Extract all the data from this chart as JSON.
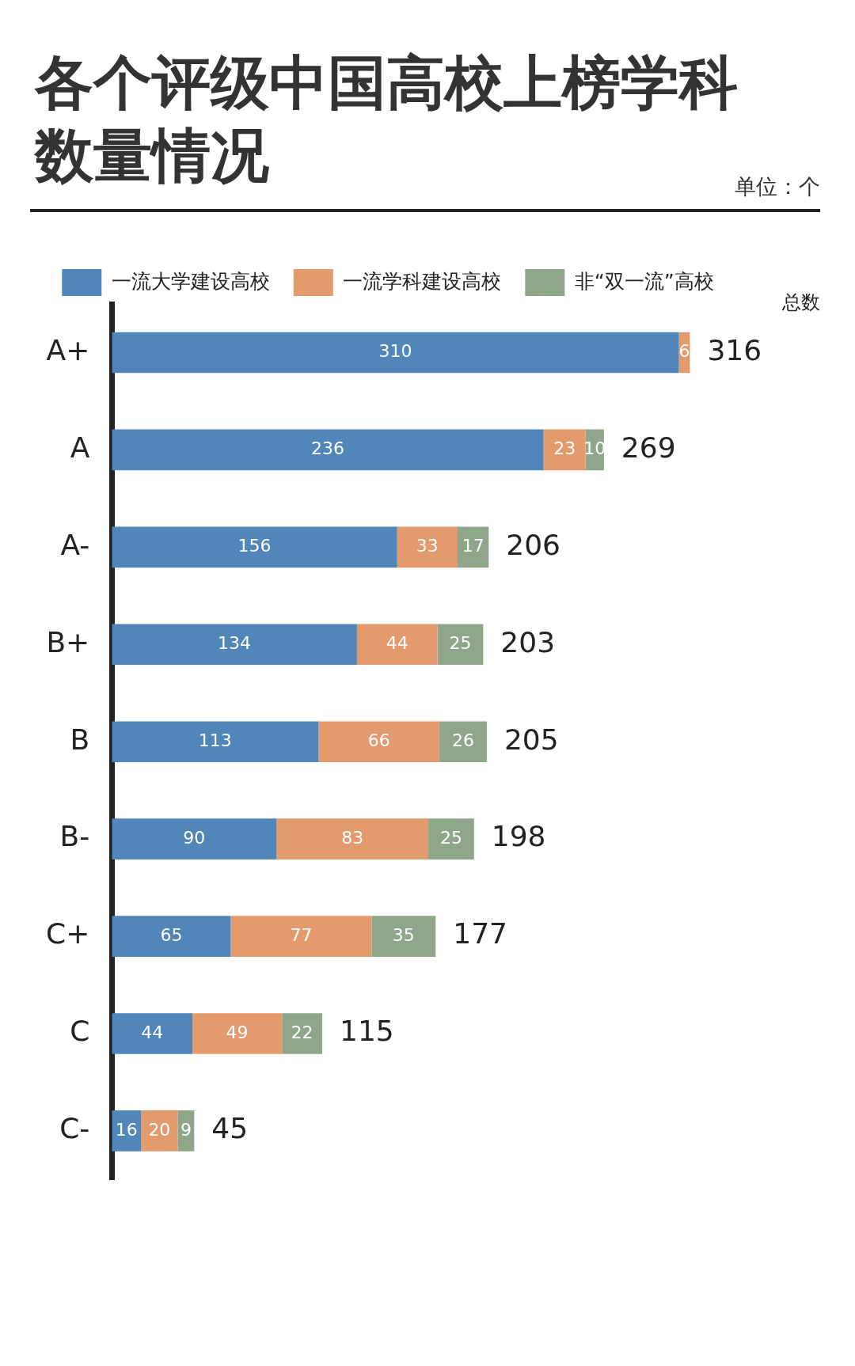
{
  "chart_data": {
    "type": "bar",
    "orientation": "horizontal",
    "stacked": true,
    "title": "各个评级中国高校上榜学科数量情况",
    "categories": [
      "A+",
      "A",
      "A-",
      "B+",
      "B",
      "B-",
      "C+",
      "C",
      "C-"
    ],
    "series": [
      {
        "name": "一流大学建设高校",
        "color": "#5086b9",
        "values": [
          310,
          236,
          156,
          134,
          113,
          90,
          65,
          44,
          16
        ]
      },
      {
        "name": "一流学科建设高校",
        "color": "#e39a6c",
        "values": [
          6,
          23,
          33,
          44,
          66,
          83,
          77,
          49,
          20
        ]
      },
      {
        "name": "非“双一流”高校",
        "color": "#8fa68a",
        "values": [
          null,
          10,
          17,
          25,
          26,
          25,
          35,
          22,
          9
        ]
      }
    ],
    "data_labels": true,
    "totals": [
      "316",
      "269",
      "206",
      "203",
      "205",
      "198",
      "177",
      "115",
      "45"
    ],
    "legend": "top",
    "tick_labels": "y",
    "grid": false,
    "annotations": [
      "单位：个",
      "总数"
    ]
  }
}
